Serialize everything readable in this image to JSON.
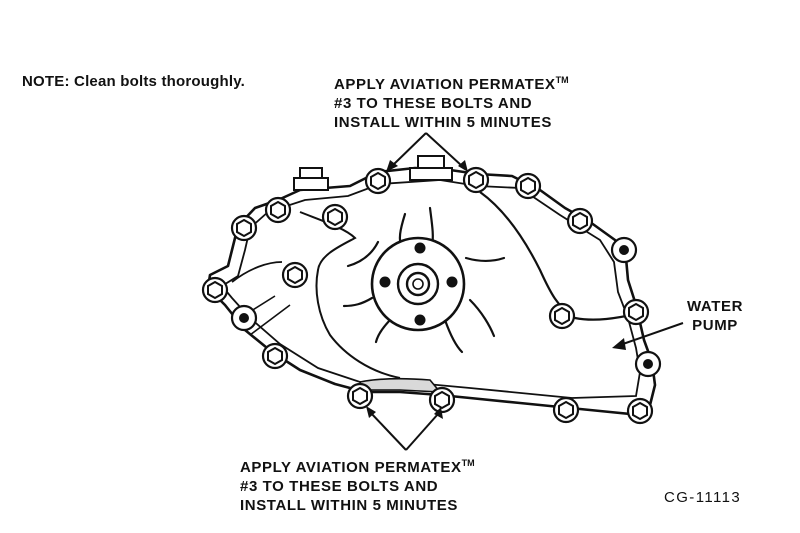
{
  "labels": {
    "note": "NOTE:  Clean bolts thoroughly.",
    "top_callout": {
      "line1": "APPLY AVIATION PERMATEX",
      "tm": "TM",
      "line2": "#3 TO THESE BOLTS AND",
      "line3": "INSTALL WITHIN 5 MINUTES"
    },
    "bottom_callout": {
      "line1": "APPLY AVIATION PERMATEX",
      "tm": "TM",
      "line2": "#3 TO THESE BOLTS AND",
      "line3": "INSTALL WITHIN 5 MINUTES"
    },
    "water_pump": {
      "line1": "WATER",
      "line2": "PUMP"
    },
    "figure_id": "CG-11113"
  },
  "colors": {
    "ink": "#111111",
    "paper": "#ffffff",
    "shade": "#d9d9d9"
  }
}
